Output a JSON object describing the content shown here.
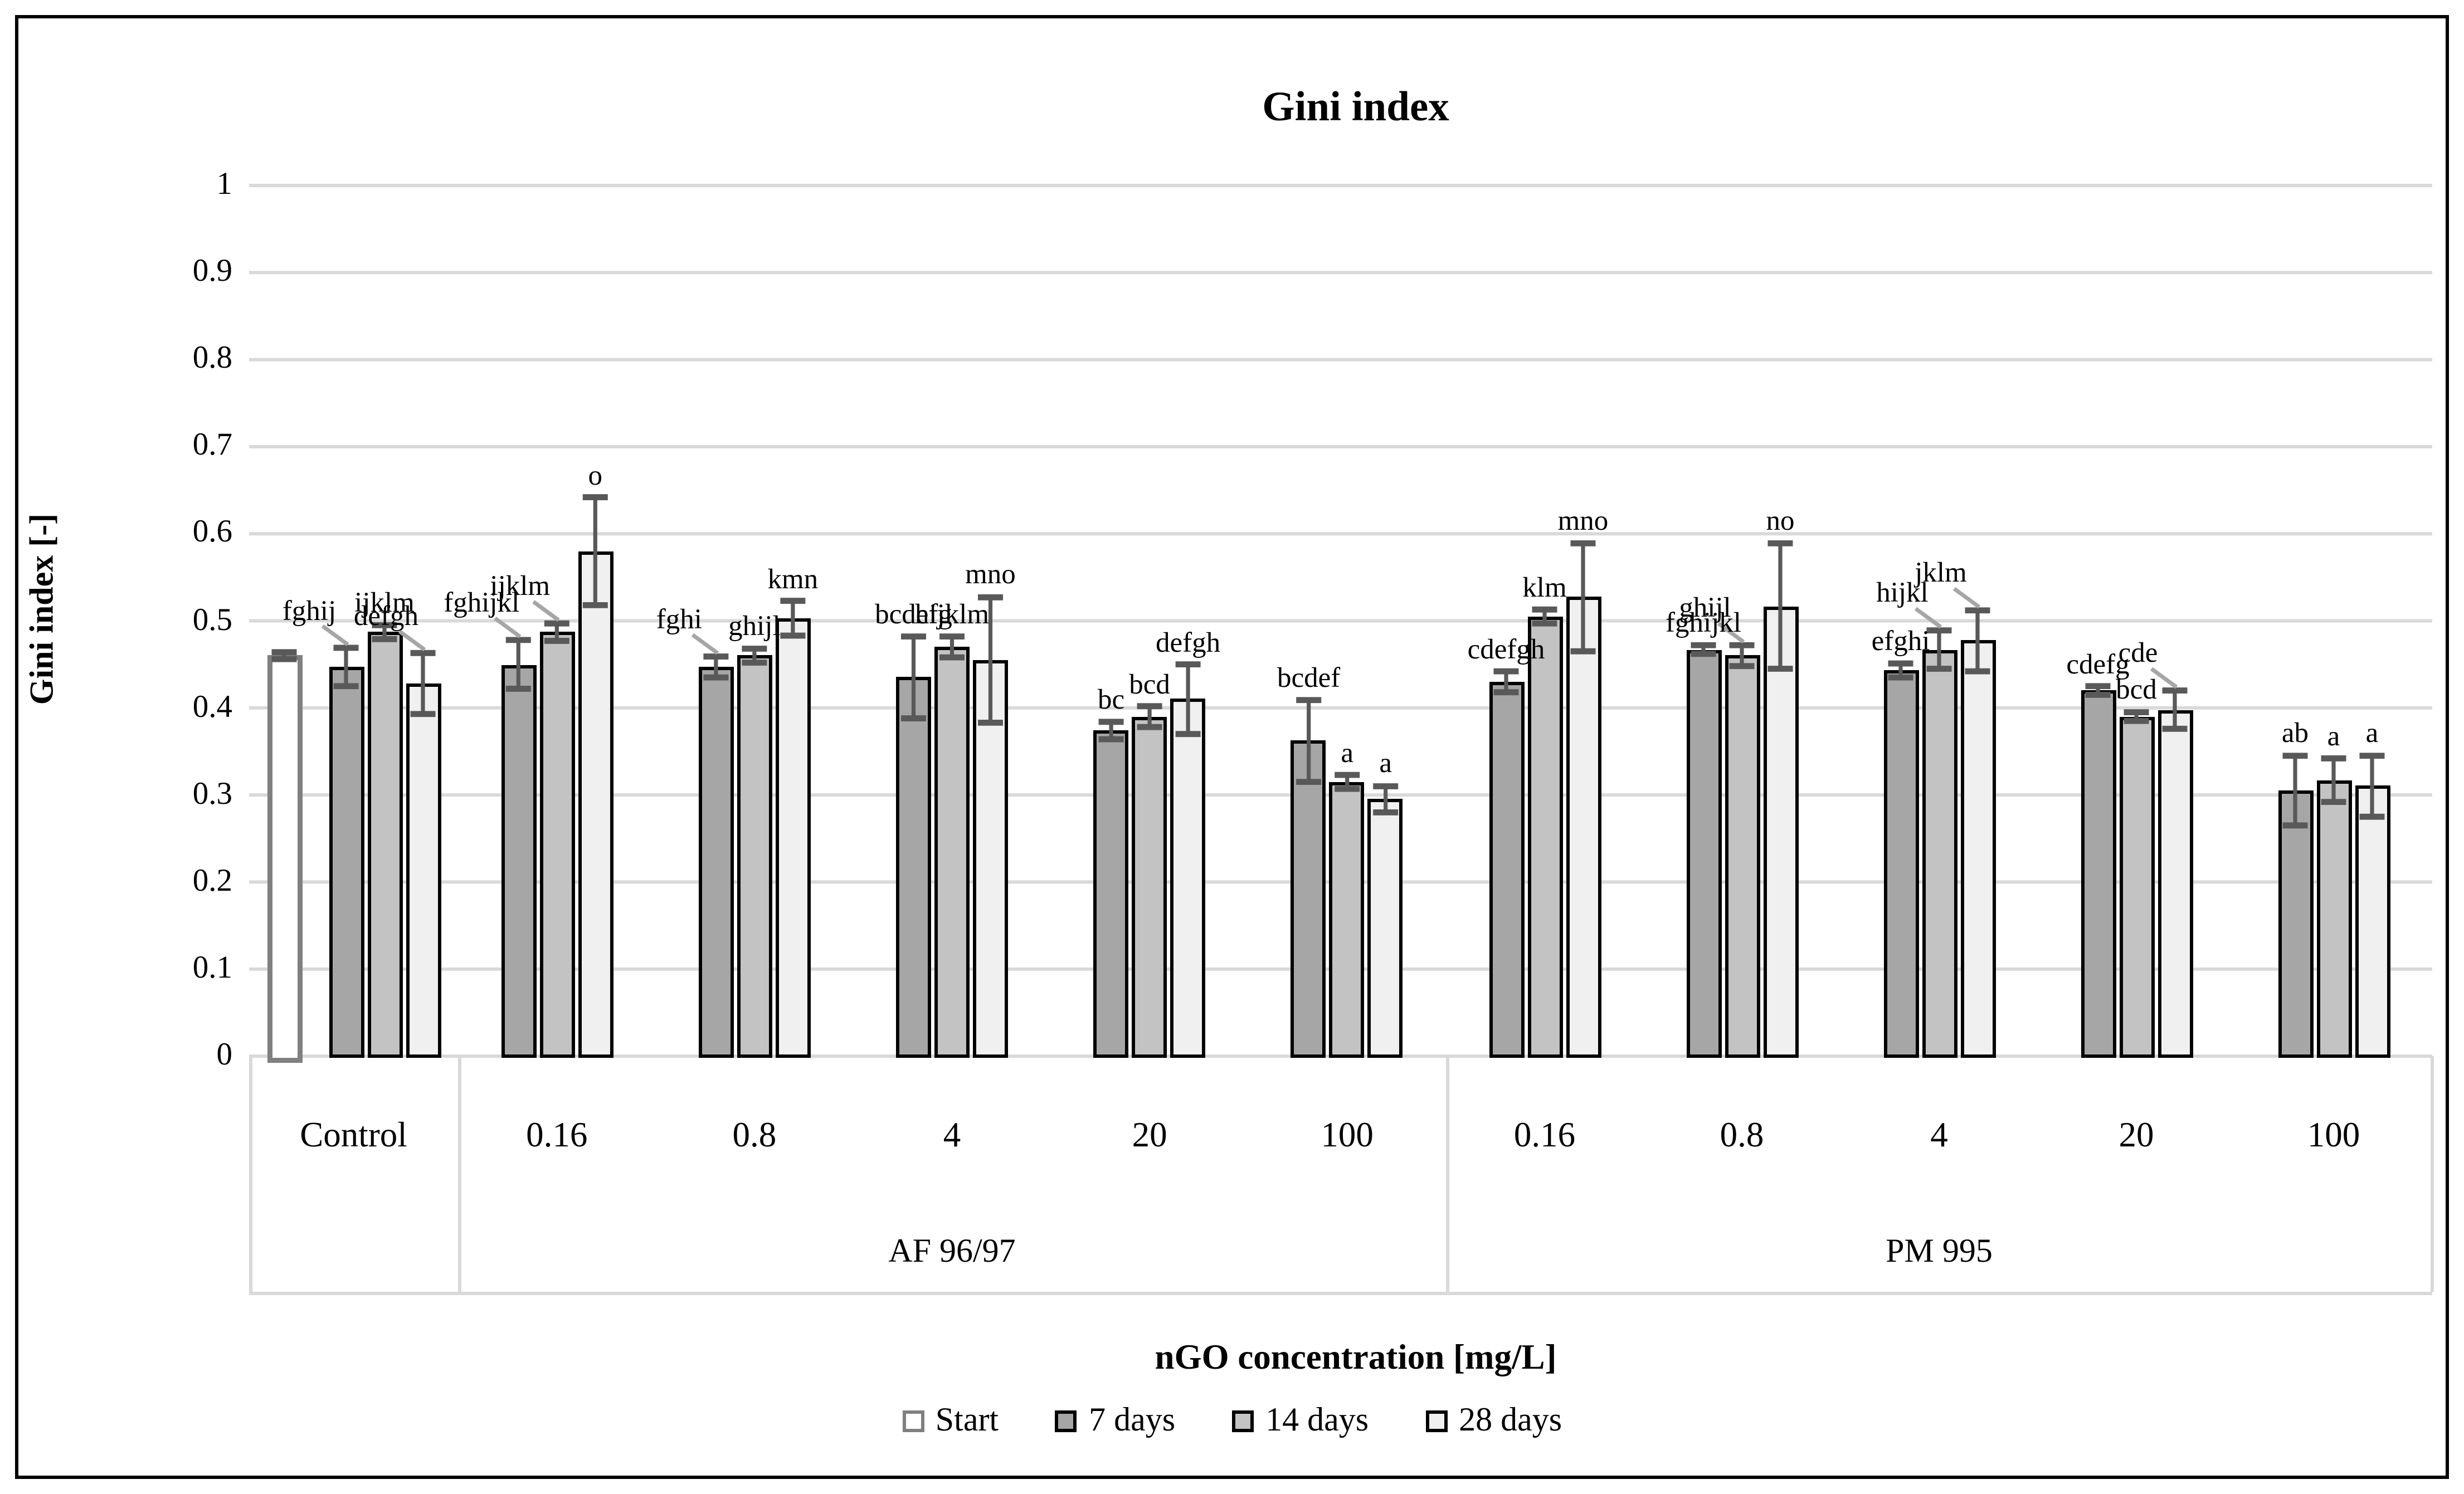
{
  "chart_data": {
    "type": "bar",
    "title": "Gini index",
    "ylabel": "Gini index [-]",
    "xlabel": "nGO concentration [mg/L]",
    "ylim": [
      0,
      1
    ],
    "ytick_labels": [
      "1",
      "0.9",
      "0.8",
      "0.7",
      "0.6",
      "0.5",
      "0.4",
      "0.3",
      "0.2",
      "0.1",
      "0"
    ],
    "grid": true,
    "legend_position": "bottom",
    "series_names": [
      "Start",
      "7 days",
      "14 days",
      "28 days"
    ],
    "series_colors": {
      "Start": "#ffffff",
      "7 days": "#a6a6a6",
      "14 days": "#c3c3c3",
      "28 days": "#f0f0f0"
    },
    "start_bar_border_color": "#808080",
    "error_bar_color": "#595959",
    "sections": [
      {
        "label": "",
        "group_count": 1
      },
      {
        "label": "AF 96/97",
        "group_count": 5
      },
      {
        "label": "PM 995",
        "group_count": 5
      }
    ],
    "groups": [
      {
        "category": "Control",
        "section": "",
        "bars": [
          {
            "series": "Start",
            "value": 0.46,
            "error": 0.004,
            "letters": ""
          },
          {
            "series": "7 days",
            "value": 0.447,
            "error": 0.022,
            "letters": "fghij",
            "leader": true
          },
          {
            "series": "14 days",
            "value": 0.487,
            "error": 0.008,
            "letters": "ijklm"
          },
          {
            "series": "28 days",
            "value": 0.428,
            "error": 0.035,
            "letters": "defgh",
            "leader": true
          }
        ]
      },
      {
        "category": "0.16",
        "section": "AF 96/97",
        "bars": [
          {
            "series": "7 days",
            "value": 0.45,
            "error": 0.028,
            "letters": "fghijkl",
            "leader": true
          },
          {
            "series": "14 days",
            "value": 0.487,
            "error": 0.01,
            "letters": "ijklm",
            "leader": true
          },
          {
            "series": "28 days",
            "value": 0.58,
            "error": 0.062,
            "letters": "o"
          }
        ]
      },
      {
        "category": "0.8",
        "section": "AF 96/97",
        "bars": [
          {
            "series": "7 days",
            "value": 0.447,
            "error": 0.012,
            "letters": "fghi",
            "leader": true
          },
          {
            "series": "14 days",
            "value": 0.46,
            "error": 0.008,
            "letters": "ghijl"
          },
          {
            "series": "28 days",
            "value": 0.503,
            "error": 0.02,
            "letters": "kmn"
          }
        ]
      },
      {
        "category": "4",
        "section": "AF 96/97",
        "bars": [
          {
            "series": "7 days",
            "value": 0.435,
            "error": 0.047,
            "letters": "bcdefg"
          },
          {
            "series": "14 days",
            "value": 0.47,
            "error": 0.012,
            "letters": "hijklm"
          },
          {
            "series": "28 days",
            "value": 0.455,
            "error": 0.072,
            "letters": "mno"
          }
        ]
      },
      {
        "category": "20",
        "section": "AF 96/97",
        "bars": [
          {
            "series": "7 days",
            "value": 0.374,
            "error": 0.01,
            "letters": "bc"
          },
          {
            "series": "14 days",
            "value": 0.39,
            "error": 0.012,
            "letters": "bcd"
          },
          {
            "series": "28 days",
            "value": 0.41,
            "error": 0.04,
            "letters": "defgh"
          }
        ]
      },
      {
        "category": "100",
        "section": "AF 96/97",
        "bars": [
          {
            "series": "7 days",
            "value": 0.362,
            "error": 0.047,
            "letters": "bcdef"
          },
          {
            "series": "14 days",
            "value": 0.315,
            "error": 0.008,
            "letters": "a"
          },
          {
            "series": "28 days",
            "value": 0.295,
            "error": 0.015,
            "letters": "a"
          }
        ]
      },
      {
        "category": "0.16",
        "section": "PM 995",
        "bars": [
          {
            "series": "7 days",
            "value": 0.43,
            "error": 0.012,
            "letters": "cdefgh"
          },
          {
            "series": "14 days",
            "value": 0.505,
            "error": 0.008,
            "letters": "klm"
          },
          {
            "series": "28 days",
            "value": 0.527,
            "error": 0.062,
            "letters": "mno"
          }
        ]
      },
      {
        "category": "0.8",
        "section": "PM 995",
        "bars": [
          {
            "series": "7 days",
            "value": 0.467,
            "error": 0.005,
            "letters": "fghijkl"
          },
          {
            "series": "14 days",
            "value": 0.46,
            "error": 0.012,
            "letters": "ghijl",
            "leader": true
          },
          {
            "series": "28 days",
            "value": 0.517,
            "error": 0.072,
            "letters": "no"
          }
        ]
      },
      {
        "category": "4",
        "section": "PM 995",
        "bars": [
          {
            "series": "7 days",
            "value": 0.443,
            "error": 0.008,
            "letters": "efghi"
          },
          {
            "series": "14 days",
            "value": 0.467,
            "error": 0.022,
            "letters": "hijkl",
            "leader": true
          },
          {
            "series": "28 days",
            "value": 0.477,
            "error": 0.035,
            "letters": "jklm",
            "leader": true
          }
        ]
      },
      {
        "category": "20",
        "section": "PM 995",
        "bars": [
          {
            "series": "7 days",
            "value": 0.42,
            "error": 0.005,
            "letters": "cdefg"
          },
          {
            "series": "14 days",
            "value": 0.39,
            "error": 0.005,
            "letters": "bcd"
          },
          {
            "series": "28 days",
            "value": 0.398,
            "error": 0.022,
            "letters": "cde",
            "leader": true
          }
        ]
      },
      {
        "category": "100",
        "section": "PM 995",
        "bars": [
          {
            "series": "7 days",
            "value": 0.305,
            "error": 0.04,
            "letters": "ab"
          },
          {
            "series": "14 days",
            "value": 0.317,
            "error": 0.025,
            "letters": "a"
          },
          {
            "series": "28 days",
            "value": 0.31,
            "error": 0.035,
            "letters": "a"
          }
        ]
      }
    ]
  },
  "colors": {
    "gridline": "#d9d9d9",
    "bar_outline": "#000000",
    "leader_line": "#a6a6a6",
    "frame_border": "#000000",
    "band_border": "#d9d9d9"
  }
}
